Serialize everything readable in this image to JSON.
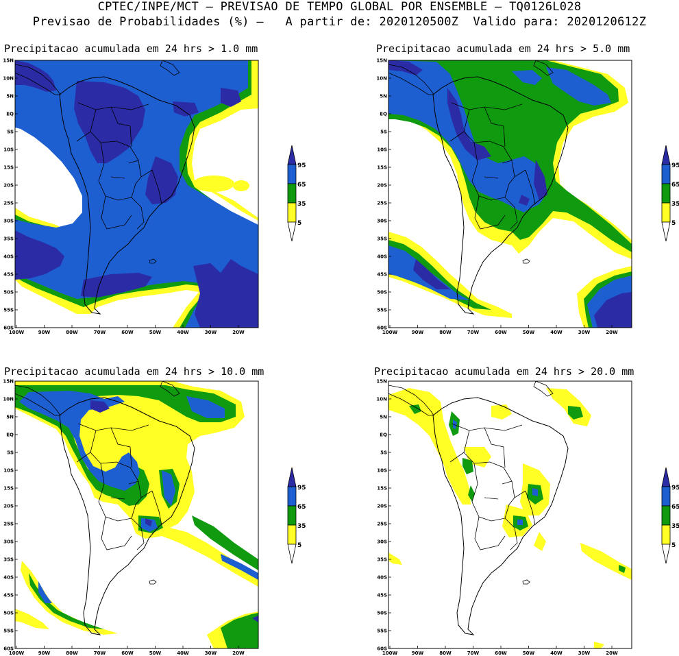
{
  "header": {
    "line1": "CPTEC/INPE/MCT – PREVISAO DE TEMPO GLOBAL POR ENSEMBLE – TQ0126L028",
    "line2": "Previsao de Probabilidades (%) –   A partir de: 2020120500Z  Valido para: 2020120612Z"
  },
  "axes": {
    "lat_labels": [
      "15N",
      "10N",
      "5N",
      "EQ",
      "5S",
      "10S",
      "15S",
      "20S",
      "25S",
      "30S",
      "35S",
      "40S",
      "45S",
      "50S",
      "55S",
      "60S"
    ],
    "lon_labels": [
      "100W",
      "90W",
      "80W",
      "70W",
      "60W",
      "50W",
      "40W",
      "30W",
      "20W"
    ]
  },
  "colorbar": {
    "labels": [
      "95",
      "65",
      "35",
      "5"
    ],
    "colors": {
      "c95": "#2b2ba6",
      "c65": "#1d5fd0",
      "c35": "#0f9a0f",
      "c5": "#ffff26",
      "land_line": "#000000"
    }
  },
  "panels": [
    {
      "title": "Precipitacao acumulada em 24 hrs > 1.0 mm"
    },
    {
      "title": "Precipitacao acumulada em 24 hrs > 5.0 mm"
    },
    {
      "title": "Precipitacao acumulada em 24 hrs > 10.0 mm"
    },
    {
      "title": "Precipitacao acumulada em 24 hrs > 20.0 mm"
    }
  ]
}
